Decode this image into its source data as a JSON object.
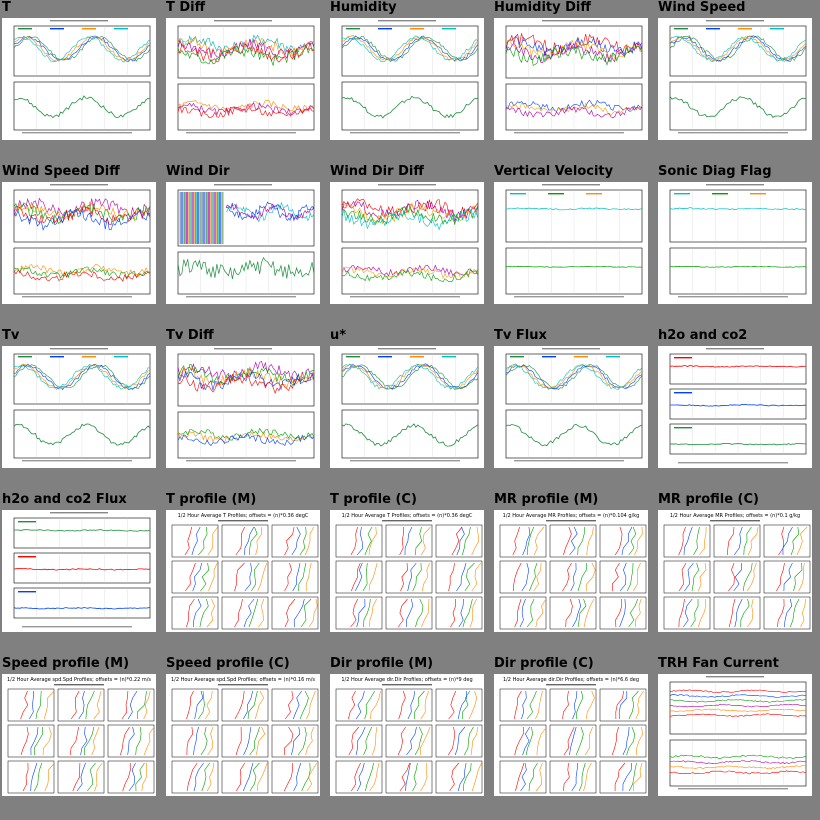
{
  "page": {
    "background": "#808080"
  },
  "tiles": [
    {
      "title": "T",
      "kind": "ts2",
      "colors": [
        "#1f8f3f",
        "#0040ff",
        "#ff8c00",
        "#00c0c0"
      ]
    },
    {
      "title": "T Diff",
      "kind": "diff",
      "colors": [
        "#00b0b0",
        "#ff8c00",
        "#b000b0",
        "#ff0000",
        "#00a000"
      ]
    },
    {
      "title": "Humidity",
      "kind": "ts2",
      "colors": [
        "#1f8f3f",
        "#0040ff",
        "#ff8c00",
        "#00c0c0"
      ]
    },
    {
      "title": "Humidity Diff",
      "kind": "diff",
      "colors": [
        "#ff0000",
        "#0040ff",
        "#ffa000",
        "#b000b0",
        "#00a000"
      ]
    },
    {
      "title": "Wind Speed",
      "kind": "ts2",
      "colors": [
        "#1f8f3f",
        "#0040ff",
        "#ff8c00",
        "#00c0c0"
      ]
    },
    {
      "title": "Wind Speed Diff",
      "kind": "diff",
      "colors": [
        "#b000b0",
        "#ff8c00",
        "#00a000",
        "#ff0000",
        "#0040ff"
      ]
    },
    {
      "title": "Wind Dir",
      "kind": "dir",
      "colors": [
        "#00c0c0",
        "#b000b0",
        "#0040ff",
        "#ff8c00",
        "#1f8f3f"
      ]
    },
    {
      "title": "Wind Dir Diff",
      "kind": "diff",
      "colors": [
        "#ff0000",
        "#b000b0",
        "#ffa000",
        "#00a000",
        "#00c0c0"
      ]
    },
    {
      "title": "Vertical Velocity",
      "kind": "flat",
      "colors": [
        "#00c0c0",
        "#00a000",
        "#ff8c00"
      ]
    },
    {
      "title": "Sonic Diag Flag",
      "kind": "flat",
      "colors": [
        "#00c0c0",
        "#00a000",
        "#ff8c00"
      ]
    },
    {
      "title": "Tv",
      "kind": "ts2",
      "colors": [
        "#1f8f3f",
        "#0040ff",
        "#ff8c00",
        "#00c0c0"
      ]
    },
    {
      "title": "Tv Diff",
      "kind": "diff",
      "colors": [
        "#b000b0",
        "#00a000",
        "#ff8c00",
        "#0040ff",
        "#ff0000"
      ]
    },
    {
      "title": "u*",
      "kind": "ts2",
      "colors": [
        "#1f8f3f",
        "#0040ff",
        "#ff8c00",
        "#00c0c0"
      ]
    },
    {
      "title": "Tv Flux",
      "kind": "ts2",
      "colors": [
        "#1f8f3f",
        "#0040ff",
        "#ff8c00",
        "#00c0c0"
      ]
    },
    {
      "title": "h2o and co2",
      "kind": "tri",
      "colors": [
        "#ff0000",
        "#0040ff",
        "#1f8f3f",
        "#00c0c0"
      ]
    },
    {
      "title": "h2o and co2 Flux",
      "kind": "tri",
      "colors": [
        "#1f8f3f",
        "#ff0000",
        "#0040ff",
        "#00c0c0"
      ]
    },
    {
      "title": "T profile (M)",
      "kind": "profile",
      "colors": [
        "#ff0000",
        "#0040ff",
        "#00a000",
        "#ff8c00",
        "#b000b0"
      ],
      "heading": "1/2 Hour Average T Profiles; offsets = (n)*0.36 degC"
    },
    {
      "title": "T profile (C)",
      "kind": "profile",
      "colors": [
        "#ff0000",
        "#0040ff",
        "#00a000",
        "#ff8c00",
        "#b000b0"
      ],
      "heading": "1/2 Hour Average T Profiles; offsets = (n)*0.36 degC"
    },
    {
      "title": "MR profile (M)",
      "kind": "profile",
      "colors": [
        "#ff0000",
        "#0040ff",
        "#00a000",
        "#ff8c00",
        "#b000b0"
      ],
      "heading": "1/2 Hour Average MR Profiles; offsets = (n)*0.104 g/kg"
    },
    {
      "title": "MR profile (C)",
      "kind": "profile",
      "colors": [
        "#ff0000",
        "#0040ff",
        "#00a000",
        "#ff8c00",
        "#b000b0"
      ],
      "heading": "1/2 Hour Average MR Profiles; offsets = (n)*0.1 g/kg"
    },
    {
      "title": "Speed profile (M)",
      "kind": "profile",
      "colors": [
        "#ff0000",
        "#0040ff",
        "#00a000",
        "#ff8c00",
        "#b000b0"
      ],
      "heading": "1/2 Hour Average spd.Spd Profiles; offsets = (n)*0.22 m/s"
    },
    {
      "title": "Speed profile (C)",
      "kind": "profile",
      "colors": [
        "#ff0000",
        "#0040ff",
        "#00a000",
        "#ff8c00",
        "#b000b0"
      ],
      "heading": "1/2 Hour Average spd.Spd Profiles; offsets = (n)*0.16 m/s"
    },
    {
      "title": "Dir profile (M)",
      "kind": "profile",
      "colors": [
        "#ff0000",
        "#0040ff",
        "#00a000",
        "#ff8c00",
        "#b000b0"
      ],
      "heading": "1/2 Hour Average dir.Dir Profiles; offsets = (n)*9 deg"
    },
    {
      "title": "Dir profile (C)",
      "kind": "profile",
      "colors": [
        "#ff0000",
        "#0040ff",
        "#00a000",
        "#ff8c00",
        "#b000b0"
      ],
      "heading": "1/2 Hour Average dir.Dir Profiles; offsets = (n)*6.6 deg"
    },
    {
      "title": "TRH Fan Current",
      "kind": "fan",
      "colors": [
        "#ff0000",
        "#0040ff",
        "#00a000",
        "#b000b0",
        "#ff8c00"
      ]
    }
  ]
}
